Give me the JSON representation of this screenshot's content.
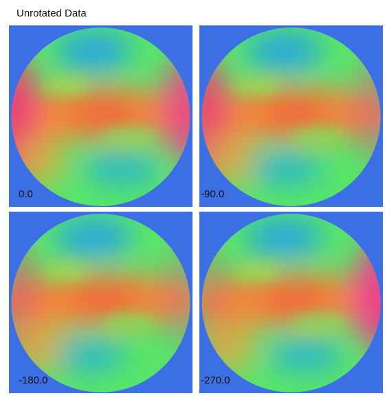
{
  "header": {
    "title": "Unrotated Data"
  },
  "panels": [
    {
      "label": "0.0"
    },
    {
      "label": "-90.0"
    },
    {
      "label": "-180.0"
    },
    {
      "label": "-270.0"
    }
  ]
}
